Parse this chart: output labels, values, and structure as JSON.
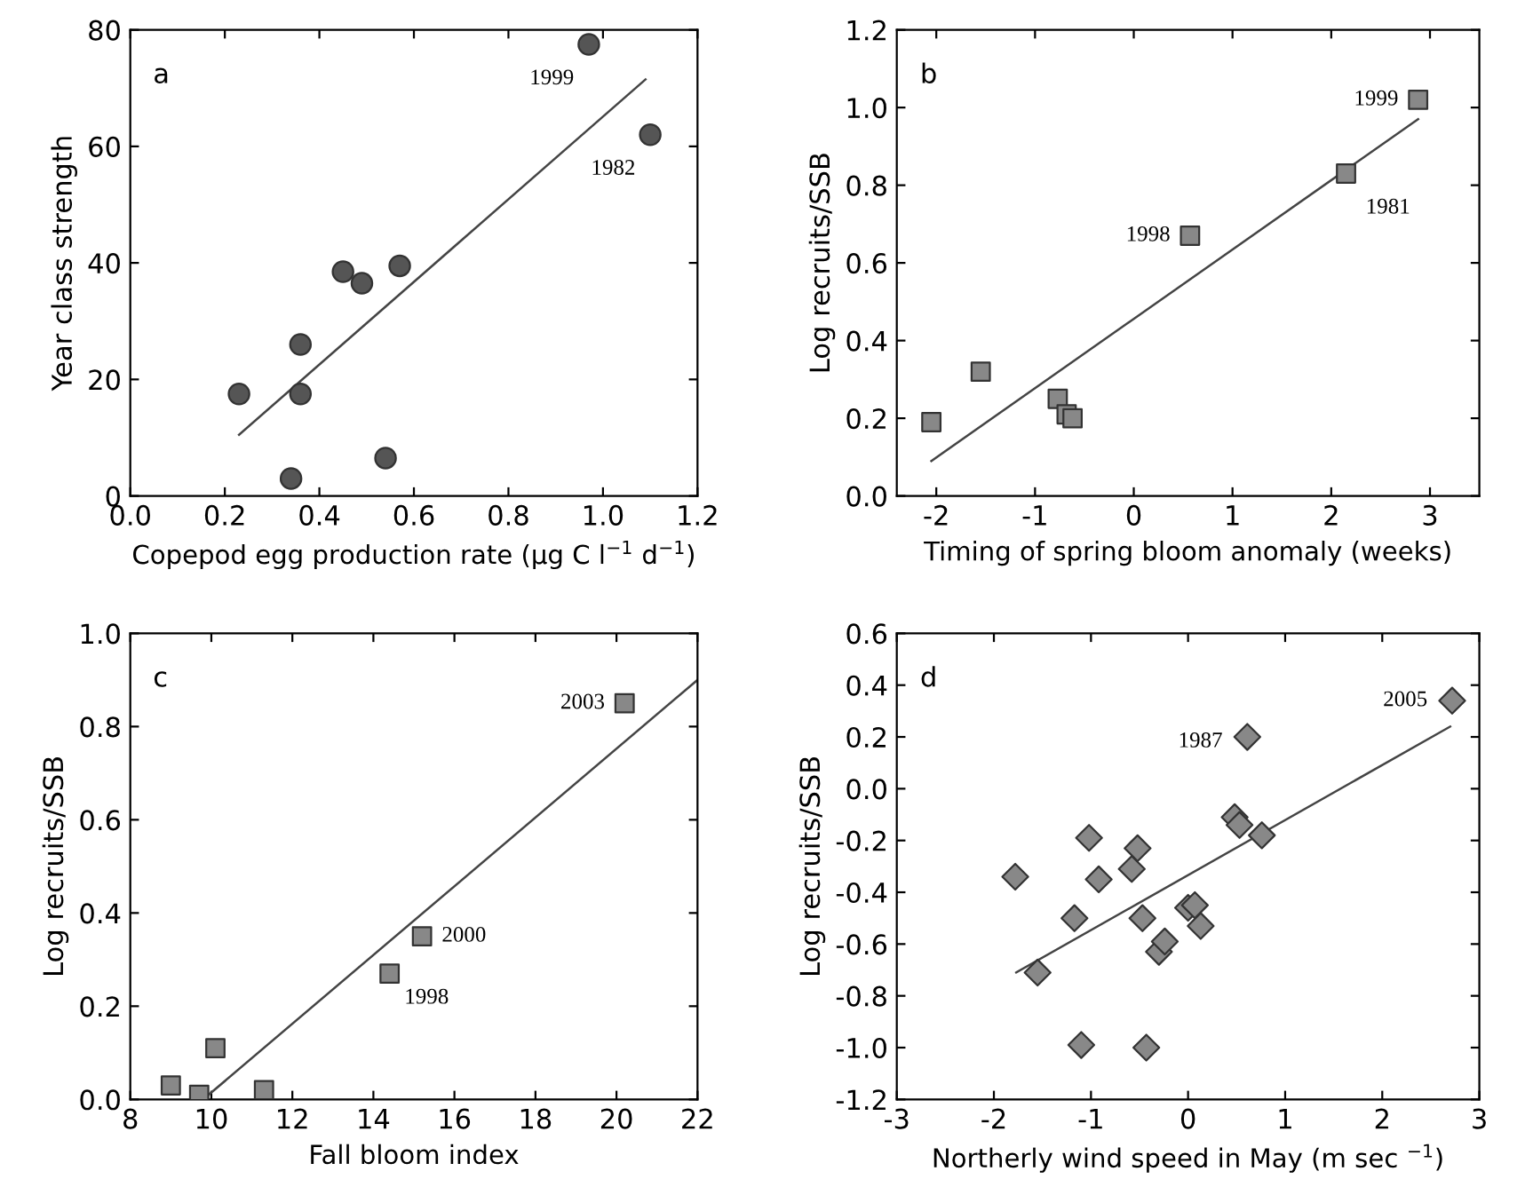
{
  "chart_data": [
    {
      "type": "scatter",
      "xlabel": "Copepod egg production rate (µg C l$^{−1}$ d$^{−1}$)",
      "ylabel": "Year class strength",
      "xlim": [
        0,
        1.2
      ],
      "ylim": [
        0,
        80
      ],
      "xticks": [
        {
          "value": 0,
          "label": "0.0"
        },
        0.2,
        0.4,
        0.6,
        0.8,
        {
          "value": 1,
          "label": "1.0"
        },
        1.2
      ],
      "yticks": [
        0,
        20,
        40,
        60,
        80
      ],
      "grid": false,
      "legend": false,
      "series": [
        {
          "marker": "circle",
          "color": "#555555",
          "x": [
            0.23,
            0.34,
            0.36,
            0.36,
            0.45,
            0.49,
            0.54,
            0.57,
            0.97,
            1.1
          ],
          "values": [
            17.5,
            3,
            17.5,
            26,
            38.5,
            36.5,
            6.5,
            39.5,
            77.5,
            62
          ]
        },
        {
          "type": "line",
          "marker": "none",
          "color": "#444444",
          "x": [
            0.23,
            1.09
          ],
          "values": [
            10.5,
            71.5
          ]
        }
      ],
      "annotations": [
        "a",
        {
          "text": "1999",
          "x": 0.97,
          "y": 77.5
        },
        {
          "text": "1982",
          "x": 1.1,
          "y": 62
        }
      ]
    },
    {
      "type": "scatter",
      "xlabel": "Timing of spring bloom anomaly (weeks)",
      "ylabel": "Log recruits/SSB",
      "xlim": [
        -2.4,
        3.5
      ],
      "ylim": [
        0,
        1.2
      ],
      "xticks": [
        -2,
        -1,
        0,
        1,
        2,
        3
      ],
      "yticks": [
        {
          "value": 0,
          "label": "0.0"
        },
        0.2,
        0.4,
        0.6,
        0.8,
        {
          "value": 1,
          "label": "1.0"
        },
        1.2
      ],
      "grid": false,
      "legend": false,
      "series": [
        {
          "marker": "square",
          "color": "#888888",
          "x": [
            -2.05,
            -1.55,
            -0.77,
            -0.68,
            -0.62,
            0.57,
            2.15,
            2.88
          ],
          "values": [
            0.19,
            0.32,
            0.25,
            0.21,
            0.2,
            0.67,
            0.83,
            1.02
          ]
        },
        {
          "type": "line",
          "marker": "none",
          "color": "#444444",
          "x": [
            -2.05,
            2.88
          ],
          "values": [
            0.09,
            0.97
          ]
        }
      ],
      "annotations": [
        "b",
        {
          "text": "1999",
          "x": 2.88,
          "y": 1.02
        },
        {
          "text": "1981",
          "x": 2.15,
          "y": 0.83
        },
        {
          "text": "1998",
          "x": 0.57,
          "y": 0.67
        }
      ]
    },
    {
      "type": "scatter",
      "xlabel": "Fall bloom index",
      "ylabel": "Log recruits/SSB",
      "xlim": [
        8,
        22
      ],
      "ylim": [
        0,
        1.0
      ],
      "xticks": [
        8,
        10,
        12,
        14,
        16,
        18,
        20,
        22
      ],
      "yticks": [
        {
          "value": 0,
          "label": "0.0"
        },
        0.2,
        0.4,
        0.6,
        0.8,
        {
          "value": 1,
          "label": "1.0"
        }
      ],
      "grid": false,
      "legend": false,
      "series": [
        {
          "marker": "square",
          "color": "#888888",
          "x": [
            9.0,
            9.7,
            10.1,
            11.3,
            14.4,
            15.2,
            20.2
          ],
          "values": [
            0.03,
            0.01,
            0.11,
            0.02,
            0.27,
            0.35,
            0.85
          ]
        },
        {
          "type": "line",
          "marker": "none",
          "color": "#444444",
          "x": [
            9.8,
            22
          ],
          "values": [
            0.0,
            0.9
          ]
        }
      ],
      "annotations": [
        "c",
        {
          "text": "2003",
          "x": 20.2,
          "y": 0.85
        },
        {
          "text": "2000",
          "x": 15.2,
          "y": 0.35
        },
        {
          "text": "1998",
          "x": 14.4,
          "y": 0.27
        }
      ]
    },
    {
      "type": "scatter",
      "xlabel": "Northerly wind speed in May (m sec $^{−1}$)",
      "ylabel": "Log recruits/SSB",
      "xlim": [
        -3,
        3
      ],
      "ylim": [
        -1.2,
        0.6
      ],
      "xticks": [
        -3,
        -2,
        -1,
        0,
        1,
        2,
        3
      ],
      "yticks": [
        -1.2,
        {
          "value": -1,
          "label": "-1.0"
        },
        -0.8,
        -0.6,
        -0.4,
        -0.2,
        {
          "value": 0,
          "label": "0.0"
        },
        0.2,
        0.4,
        0.6
      ],
      "grid": false,
      "legend": false,
      "series": [
        {
          "marker": "diamond",
          "color": "#888888",
          "x": [
            -1.78,
            -1.55,
            -1.17,
            -1.1,
            -1.02,
            -0.92,
            -0.58,
            -0.52,
            -0.47,
            -0.43,
            -0.3,
            -0.24,
            0.0,
            0.07,
            0.13,
            0.48,
            0.53,
            0.61,
            0.76,
            2.72
          ],
          "values": [
            -0.34,
            -0.71,
            -0.5,
            -0.99,
            -0.19,
            -0.35,
            -0.31,
            -0.23,
            -0.5,
            -1.0,
            -0.63,
            -0.59,
            -0.46,
            -0.45,
            -0.53,
            -0.11,
            -0.14,
            0.2,
            -0.18,
            0.34
          ]
        },
        {
          "type": "line",
          "marker": "none",
          "color": "#444444",
          "x": [
            -1.77,
            2.7
          ],
          "values": [
            -0.71,
            0.24
          ]
        }
      ],
      "annotations": [
        "d",
        {
          "text": "1987",
          "x": 0.61,
          "y": 0.2
        },
        {
          "text": "2005",
          "x": 2.72,
          "y": 0.34
        }
      ]
    }
  ]
}
